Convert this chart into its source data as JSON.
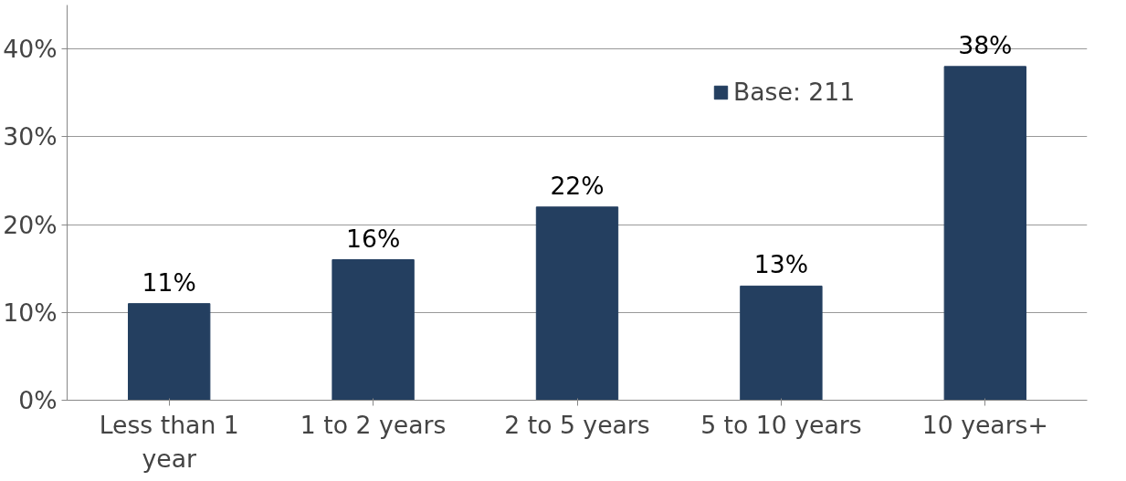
{
  "chart_data": {
    "type": "bar",
    "categories": [
      "Less than 1 year",
      "1 to 2 years",
      "2 to 5 years",
      "5 to 10 years",
      "10 years+"
    ],
    "series": [
      {
        "name": "Base: 211",
        "color": "#243f60",
        "values": [
          11,
          16,
          22,
          13,
          38
        ],
        "value_labels": [
          "11%",
          "16%",
          "22%",
          "13%",
          "38%"
        ]
      }
    ],
    "ylim": [
      0,
      45
    ],
    "yticks": [
      {
        "value": 0,
        "label": "0%"
      },
      {
        "value": 10,
        "label": "10%"
      },
      {
        "value": 20,
        "label": "20%"
      },
      {
        "value": 30,
        "label": "30%"
      },
      {
        "value": 40,
        "label": "40%"
      }
    ],
    "grid": "y",
    "legend": "top right"
  }
}
